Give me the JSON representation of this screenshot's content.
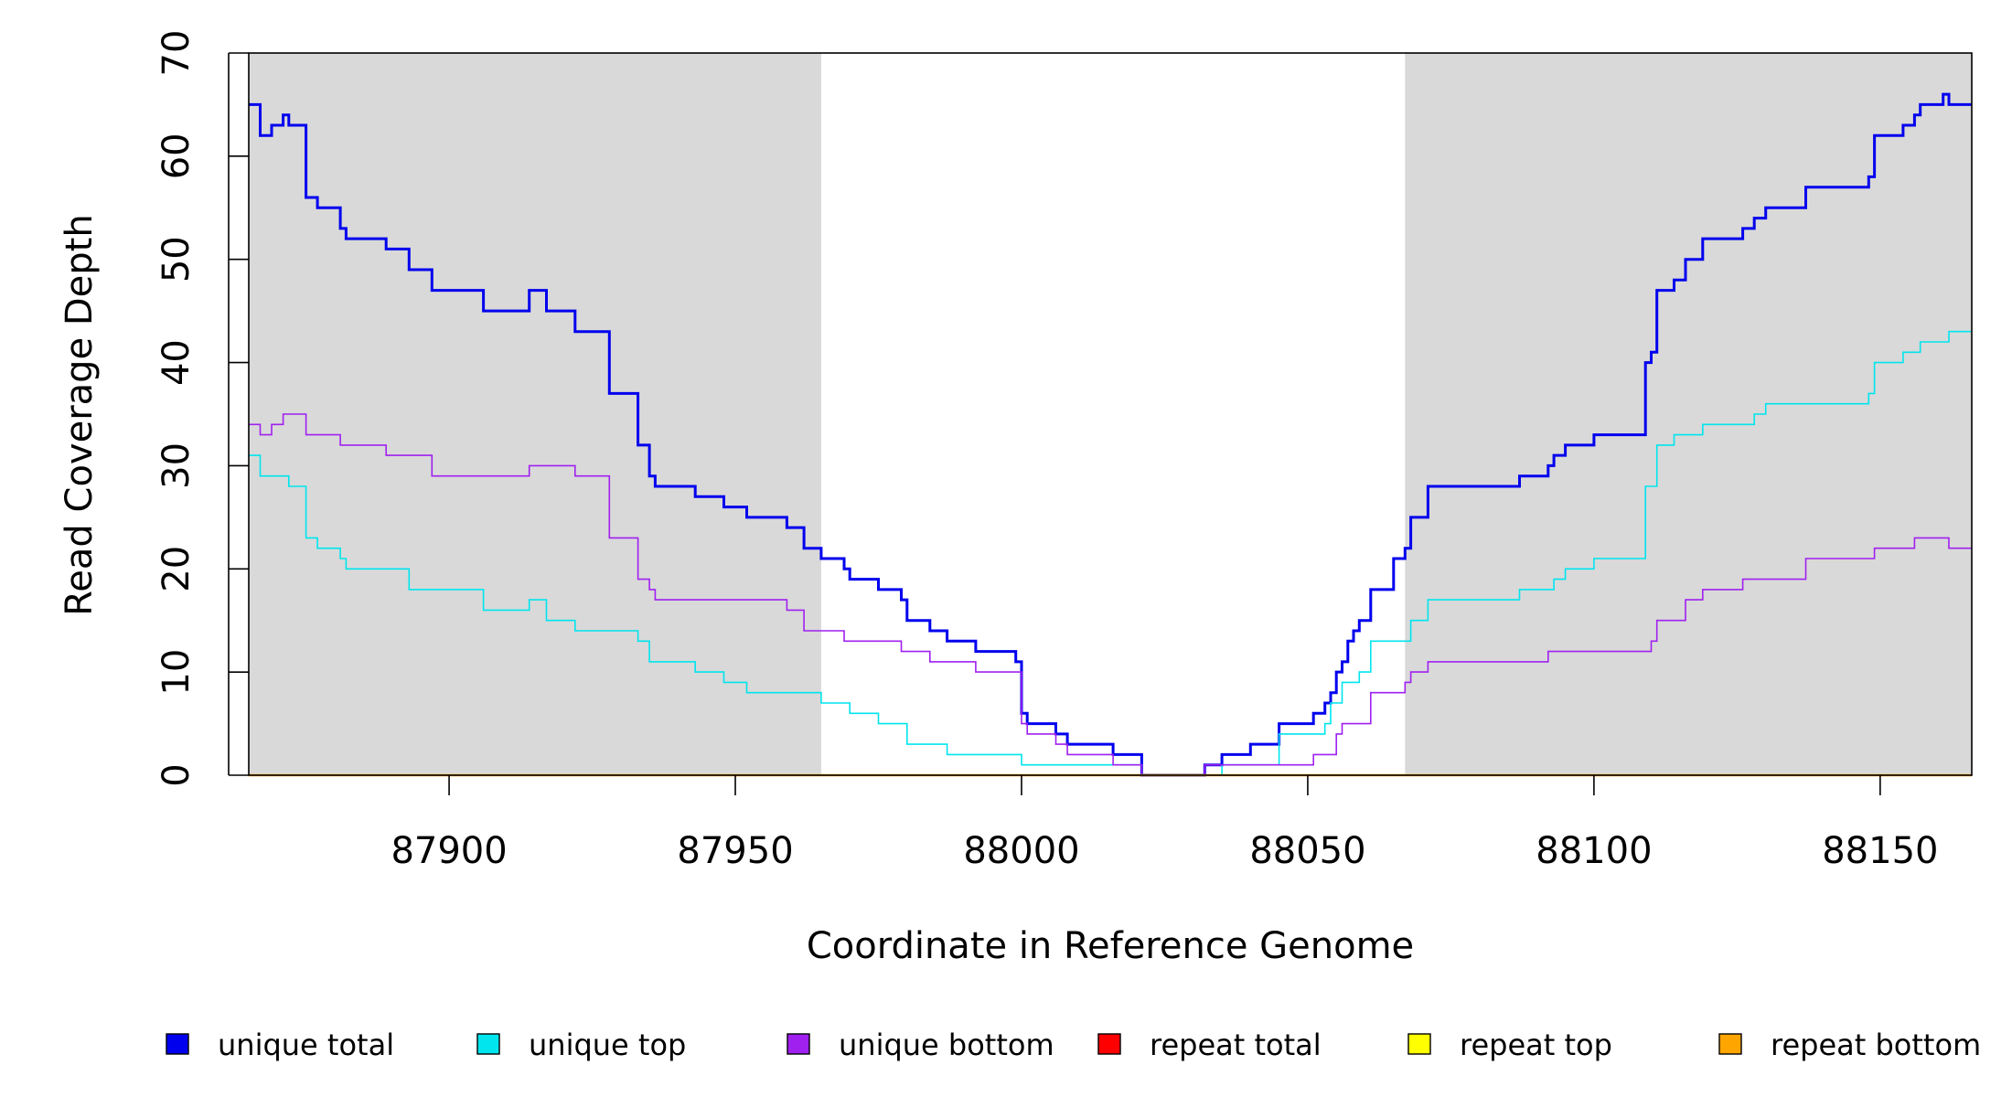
{
  "chart_data": {
    "type": "line",
    "title": "",
    "xlabel": "Coordinate in Reference Genome",
    "ylabel": "Read Coverage Depth",
    "xlim": [
      87865,
      88166
    ],
    "ylim": [
      0,
      70
    ],
    "x_ticks": [
      {
        "value": 87900,
        "label": "87900"
      },
      {
        "value": 87950,
        "label": "87950"
      },
      {
        "value": 88000,
        "label": "88000"
      },
      {
        "value": 88050,
        "label": "88050"
      },
      {
        "value": 88100,
        "label": "88100"
      },
      {
        "value": 88150,
        "label": "88150"
      }
    ],
    "y_ticks": [
      {
        "value": 0,
        "label": "0"
      },
      {
        "value": 10,
        "label": "10"
      },
      {
        "value": 20,
        "label": "20"
      },
      {
        "value": 30,
        "label": "30"
      },
      {
        "value": 40,
        "label": "40"
      },
      {
        "value": 50,
        "label": "50"
      },
      {
        "value": 60,
        "label": "60"
      },
      {
        "value": 70,
        "label": "70"
      }
    ],
    "shaded_regions": [
      [
        87865,
        87965
      ],
      [
        88067,
        88166
      ]
    ],
    "shade_color": "#d9d9d9",
    "grid": false,
    "legend_position": "bottom",
    "series": [
      {
        "name": "unique total",
        "color": "#0000ee",
        "width": 3,
        "points": [
          [
            87865,
            65
          ],
          [
            87867,
            62
          ],
          [
            87869,
            63
          ],
          [
            87871,
            64
          ],
          [
            87872,
            63
          ],
          [
            87875,
            56
          ],
          [
            87877,
            55
          ],
          [
            87881,
            53
          ],
          [
            87882,
            52
          ],
          [
            87889,
            51
          ],
          [
            87893,
            49
          ],
          [
            87897,
            47
          ],
          [
            87906,
            45
          ],
          [
            87914,
            47
          ],
          [
            87917,
            45
          ],
          [
            87922,
            43
          ],
          [
            87928,
            37
          ],
          [
            87933,
            32
          ],
          [
            87935,
            29
          ],
          [
            87936,
            28
          ],
          [
            87943,
            27
          ],
          [
            87948,
            26
          ],
          [
            87952,
            25
          ],
          [
            87959,
            24
          ],
          [
            87962,
            22
          ],
          [
            87965,
            21
          ],
          [
            87969,
            20
          ],
          [
            87970,
            19
          ],
          [
            87975,
            18
          ],
          [
            87979,
            17
          ],
          [
            87980,
            15
          ],
          [
            87984,
            14
          ],
          [
            87987,
            13
          ],
          [
            87992,
            12
          ],
          [
            87999,
            11
          ],
          [
            88000,
            6
          ],
          [
            88001,
            5
          ],
          [
            88006,
            4
          ],
          [
            88008,
            3
          ],
          [
            88016,
            2
          ],
          [
            88021,
            0
          ],
          [
            88032,
            1
          ],
          [
            88035,
            2
          ],
          [
            88040,
            3
          ],
          [
            88045,
            5
          ],
          [
            88051,
            6
          ],
          [
            88053,
            7
          ],
          [
            88054,
            8
          ],
          [
            88055,
            10
          ],
          [
            88056,
            11
          ],
          [
            88057,
            13
          ],
          [
            88058,
            14
          ],
          [
            88059,
            15
          ],
          [
            88061,
            18
          ],
          [
            88065,
            21
          ],
          [
            88067,
            22
          ],
          [
            88068,
            25
          ],
          [
            88071,
            28
          ],
          [
            88087,
            29
          ],
          [
            88092,
            30
          ],
          [
            88093,
            31
          ],
          [
            88095,
            32
          ],
          [
            88100,
            33
          ],
          [
            88109,
            40
          ],
          [
            88110,
            41
          ],
          [
            88111,
            47
          ],
          [
            88114,
            48
          ],
          [
            88116,
            50
          ],
          [
            88119,
            52
          ],
          [
            88126,
            53
          ],
          [
            88128,
            54
          ],
          [
            88130,
            55
          ],
          [
            88137,
            57
          ],
          [
            88148,
            58
          ],
          [
            88149,
            62
          ],
          [
            88154,
            63
          ],
          [
            88156,
            64
          ],
          [
            88157,
            65
          ],
          [
            88161,
            66
          ],
          [
            88162,
            65
          ],
          [
            88166,
            65
          ]
        ]
      },
      {
        "name": "unique top",
        "color": "#00e5ee",
        "width": 1.6,
        "points": [
          [
            87865,
            31
          ],
          [
            87867,
            29
          ],
          [
            87872,
            28
          ],
          [
            87875,
            23
          ],
          [
            87877,
            22
          ],
          [
            87881,
            21
          ],
          [
            87882,
            20
          ],
          [
            87893,
            18
          ],
          [
            87906,
            16
          ],
          [
            87914,
            17
          ],
          [
            87917,
            15
          ],
          [
            87922,
            14
          ],
          [
            87933,
            13
          ],
          [
            87935,
            11
          ],
          [
            87943,
            10
          ],
          [
            87948,
            9
          ],
          [
            87952,
            8
          ],
          [
            87965,
            7
          ],
          [
            87970,
            6
          ],
          [
            87975,
            5
          ],
          [
            87980,
            3
          ],
          [
            87987,
            2
          ],
          [
            88000,
            1
          ],
          [
            88021,
            0
          ],
          [
            88035,
            1
          ],
          [
            88045,
            4
          ],
          [
            88053,
            5
          ],
          [
            88054,
            7
          ],
          [
            88056,
            9
          ],
          [
            88059,
            10
          ],
          [
            88061,
            13
          ],
          [
            88068,
            15
          ],
          [
            88071,
            17
          ],
          [
            88087,
            18
          ],
          [
            88093,
            19
          ],
          [
            88095,
            20
          ],
          [
            88100,
            21
          ],
          [
            88109,
            28
          ],
          [
            88111,
            32
          ],
          [
            88114,
            33
          ],
          [
            88119,
            34
          ],
          [
            88128,
            35
          ],
          [
            88130,
            36
          ],
          [
            88148,
            37
          ],
          [
            88149,
            40
          ],
          [
            88154,
            41
          ],
          [
            88157,
            42
          ],
          [
            88162,
            43
          ],
          [
            88166,
            43
          ]
        ]
      },
      {
        "name": "unique bottom",
        "color": "#a020f0",
        "width": 1.6,
        "points": [
          [
            87865,
            34
          ],
          [
            87867,
            33
          ],
          [
            87869,
            34
          ],
          [
            87871,
            35
          ],
          [
            87875,
            33
          ],
          [
            87881,
            32
          ],
          [
            87889,
            31
          ],
          [
            87897,
            29
          ],
          [
            87914,
            30
          ],
          [
            87922,
            29
          ],
          [
            87928,
            23
          ],
          [
            87933,
            19
          ],
          [
            87935,
            18
          ],
          [
            87936,
            17
          ],
          [
            87959,
            16
          ],
          [
            87962,
            14
          ],
          [
            87969,
            13
          ],
          [
            87979,
            12
          ],
          [
            87984,
            11
          ],
          [
            87992,
            10
          ],
          [
            88000,
            5
          ],
          [
            88001,
            4
          ],
          [
            88006,
            3
          ],
          [
            88008,
            2
          ],
          [
            88016,
            1
          ],
          [
            88021,
            0
          ],
          [
            88032,
            1
          ],
          [
            88051,
            2
          ],
          [
            88055,
            4
          ],
          [
            88056,
            5
          ],
          [
            88061,
            8
          ],
          [
            88067,
            9
          ],
          [
            88068,
            10
          ],
          [
            88071,
            11
          ],
          [
            88092,
            12
          ],
          [
            88110,
            13
          ],
          [
            88111,
            15
          ],
          [
            88116,
            17
          ],
          [
            88119,
            18
          ],
          [
            88126,
            19
          ],
          [
            88137,
            21
          ],
          [
            88149,
            22
          ],
          [
            88156,
            23
          ],
          [
            88162,
            22
          ],
          [
            88166,
            22
          ]
        ]
      },
      {
        "name": "repeat total",
        "color": "#ff0000",
        "width": 1.6,
        "points": [
          [
            87865,
            0
          ],
          [
            88166,
            0
          ]
        ]
      },
      {
        "name": "repeat top",
        "color": "#ffff00",
        "width": 1.6,
        "points": [
          [
            87865,
            0
          ],
          [
            88166,
            0
          ]
        ]
      },
      {
        "name": "repeat bottom",
        "color": "#ffa500",
        "width": 2.4,
        "points": [
          [
            87865,
            0
          ],
          [
            88166,
            0
          ]
        ]
      }
    ]
  }
}
